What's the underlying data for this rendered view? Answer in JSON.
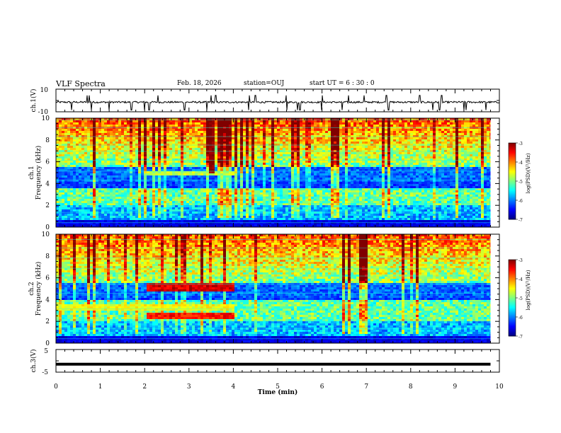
{
  "header": {
    "title": "VLF Spectra",
    "date": "Feb. 18, 2026",
    "station": "station=OUJ",
    "start_ut": "start  UT =  6 : 30 : 0"
  },
  "chart_data": [
    {
      "type": "line",
      "name": "ch1-waveform",
      "ylabel": "ch.1(V)",
      "ylim": [
        -10,
        10
      ],
      "yticks": [
        10,
        -10
      ],
      "xlim": [
        0,
        10
      ],
      "baseline": -1.5,
      "spikes_min": [
        0.35,
        0.7,
        0.75,
        0.8,
        1.2,
        1.7,
        2.0,
        2.1,
        2.3,
        2.9,
        3.4,
        3.5,
        3.6,
        4.35,
        4.5,
        5.2,
        5.45,
        5.5,
        6.0,
        6.45,
        6.6,
        6.95,
        7.45,
        7.5,
        8.2,
        8.5,
        8.65,
        8.7,
        9.2,
        9.25,
        9.7
      ]
    },
    {
      "type": "heatmap",
      "name": "ch1-spectrogram",
      "ylabel_line1": "ch.1",
      "ylabel_line2": "Frequency  (kHz)",
      "ylim": [
        0,
        10
      ],
      "yticks": [
        0,
        2,
        4,
        6,
        8,
        10
      ],
      "xlim": [
        0,
        9.8
      ],
      "colorbar": {
        "label": "log(PSD)(V²/Hz)",
        "range": [
          -7,
          -3
        ],
        "ticks": [
          -3,
          -4,
          -5,
          -6,
          -7
        ]
      },
      "features": {
        "background_level": -6.5,
        "band_kHz": [
          2.4,
          3.2
        ],
        "band_level": -5.0,
        "high_freq_noise_above_kHz": 6.0,
        "emission_line_kHz": 4.9,
        "emission_line_min": [
          2.0,
          4.0
        ],
        "spike_min": 3.5,
        "spike_level": -3.2
      }
    },
    {
      "type": "heatmap",
      "name": "ch2-spectrogram",
      "ylabel_line1": "ch.2",
      "ylabel_line2": "Frequency  (kHz)",
      "ylim": [
        0,
        10
      ],
      "yticks": [
        0,
        2,
        4,
        6,
        8,
        10
      ],
      "xlim": [
        0,
        9.8
      ],
      "colorbar": {
        "label": "log(PSD)(V²/Hz)",
        "range": [
          -7,
          -3
        ],
        "ticks": [
          -3,
          -4,
          -5,
          -6,
          -7
        ]
      },
      "features": {
        "background_level": -6.5,
        "band_kHz": [
          2.4,
          3.6
        ],
        "band_level": -5.0,
        "emission_bands_kHz": [
          5.1,
          2.5
        ],
        "emission_bands_min": [
          2.0,
          4.0
        ],
        "emission_level": -3.6
      }
    },
    {
      "type": "line",
      "name": "ch3-waveform",
      "ylabel": "ch.3(V)",
      "ylim": [
        -5,
        5
      ],
      "yticks": [
        5,
        -5
      ],
      "xlim": [
        0,
        9.8
      ],
      "value": -1.5
    }
  ],
  "xaxis": {
    "label": "Time  (min)",
    "range": [
      0,
      10
    ],
    "ticks": [
      0,
      1,
      2,
      3,
      4,
      5,
      6,
      7,
      8,
      9,
      10
    ]
  }
}
